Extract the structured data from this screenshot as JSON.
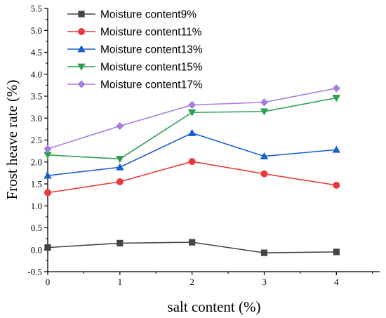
{
  "chart_data": {
    "type": "line",
    "xlabel": "salt content (%)",
    "ylabel": "Frost heave rate (%)",
    "x": [
      0,
      1,
      2,
      3,
      4
    ],
    "xlim": [
      0,
      4.6
    ],
    "ylim": [
      -0.5,
      5.5
    ],
    "xticks": [
      "0",
      "1",
      "2",
      "3",
      "4"
    ],
    "yticks": [
      "-0.5",
      "0.0",
      "0.5",
      "1.0",
      "1.5",
      "2.0",
      "2.5",
      "3.0",
      "3.5",
      "4.0",
      "4.5",
      "5.0",
      "5.5"
    ],
    "grid": false,
    "legend_position": "top-left",
    "series": [
      {
        "name": "Moisture content9%",
        "color": "#444444",
        "marker": "square",
        "values": [
          0.05,
          0.15,
          0.17,
          -0.07,
          -0.05
        ]
      },
      {
        "name": "Moisture content11%",
        "color": "#e8393b",
        "marker": "circle",
        "values": [
          1.3,
          1.55,
          2.01,
          1.73,
          1.47
        ]
      },
      {
        "name": "Moisture content13%",
        "color": "#1a5fd1",
        "marker": "triangle-up",
        "values": [
          1.69,
          1.88,
          2.66,
          2.13,
          2.28
        ]
      },
      {
        "name": "Moisture content15%",
        "color": "#2e9e55",
        "marker": "triangle-down",
        "values": [
          2.16,
          2.07,
          3.13,
          3.15,
          3.46
        ]
      },
      {
        "name": "Moisture content17%",
        "color": "#a77de0",
        "marker": "diamond",
        "values": [
          2.3,
          2.82,
          3.3,
          3.36,
          3.68
        ]
      }
    ]
  }
}
